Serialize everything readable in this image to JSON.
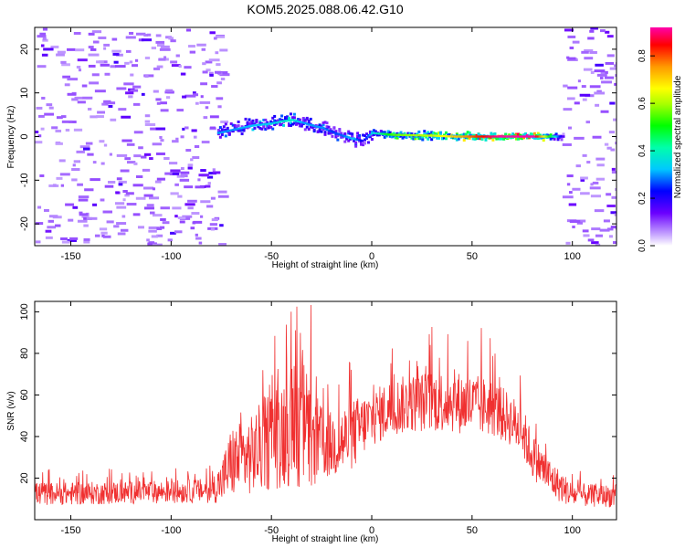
{
  "title": "KOM5.2025.088.06.42.G10",
  "chart_data": [
    {
      "type": "heatmap",
      "xlabel": "Height of straight line (km)",
      "ylabel": "Frequency (Hz)",
      "xlim": [
        -168,
        122
      ],
      "ylim": [
        -25,
        25
      ],
      "xticks": [
        -150,
        -100,
        -50,
        0,
        50,
        100
      ],
      "yticks": [
        -20,
        -10,
        0,
        10,
        20
      ],
      "ridge": {
        "x": [
          -77,
          -70,
          -60,
          -50,
          -45,
          -40,
          -35,
          -30,
          -25,
          -20,
          -15,
          -10,
          -5,
          0,
          5,
          10,
          20,
          30,
          40,
          50,
          60,
          70,
          80,
          90,
          95
        ],
        "y": [
          0.8,
          1.5,
          2.5,
          3.0,
          3.5,
          3.8,
          3.2,
          2.5,
          2.0,
          1.0,
          0.2,
          -0.5,
          -1.0,
          0.8,
          0.6,
          0.4,
          0.3,
          0.2,
          0.0,
          0.0,
          0.0,
          0.0,
          0.0,
          0.0,
          0.0
        ],
        "amplitude": [
          0.3,
          0.3,
          0.32,
          0.35,
          0.37,
          0.38,
          0.3,
          0.3,
          0.3,
          0.25,
          0.28,
          0.33,
          0.2,
          0.35,
          0.45,
          0.55,
          0.6,
          0.62,
          0.7,
          0.8,
          0.9,
          0.95,
          0.95,
          0.4,
          0.15
        ]
      },
      "noise_regions": [
        [
          -168,
          -75
        ],
        [
          95,
          122
        ]
      ],
      "colorbar": {
        "label": "Normalized spectral amplitude",
        "range": [
          0.0,
          0.92
        ],
        "ticks": [
          0.0,
          0.2,
          0.4,
          0.6,
          0.8
        ]
      }
    },
    {
      "type": "line",
      "xlabel": "Height of straight line (km)",
      "ylabel": "SNR (v/v)",
      "xlim": [
        -168,
        122
      ],
      "ylim": [
        0,
        105
      ],
      "xticks": [
        -150,
        -100,
        -50,
        0,
        50,
        100
      ],
      "yticks": [
        20,
        40,
        60,
        80,
        100
      ],
      "color": "#f03030",
      "envelope": {
        "x": [
          -168,
          -150,
          -100,
          -80,
          -75,
          -70,
          -60,
          -50,
          -45,
          -40,
          -35,
          -30,
          -25,
          -20,
          -15,
          -10,
          -5,
          0,
          10,
          20,
          30,
          40,
          50,
          60,
          70,
          75,
          80,
          90,
          100,
          110,
          122
        ],
        "low": [
          7,
          7,
          8,
          8,
          8,
          10,
          12,
          14,
          15,
          16,
          15,
          15,
          18,
          20,
          20,
          22,
          30,
          35,
          40,
          42,
          42,
          42,
          40,
          40,
          35,
          30,
          20,
          10,
          6,
          6,
          6
        ],
        "high": [
          18,
          18,
          19,
          20,
          28,
          45,
          50,
          65,
          70,
          75,
          80,
          65,
          55,
          52,
          55,
          58,
          60,
          62,
          68,
          70,
          72,
          72,
          70,
          68,
          60,
          55,
          42,
          28,
          18,
          17,
          17
        ]
      }
    }
  ],
  "colors": {
    "line": "#f03030",
    "noise": "#c8a8ff"
  }
}
